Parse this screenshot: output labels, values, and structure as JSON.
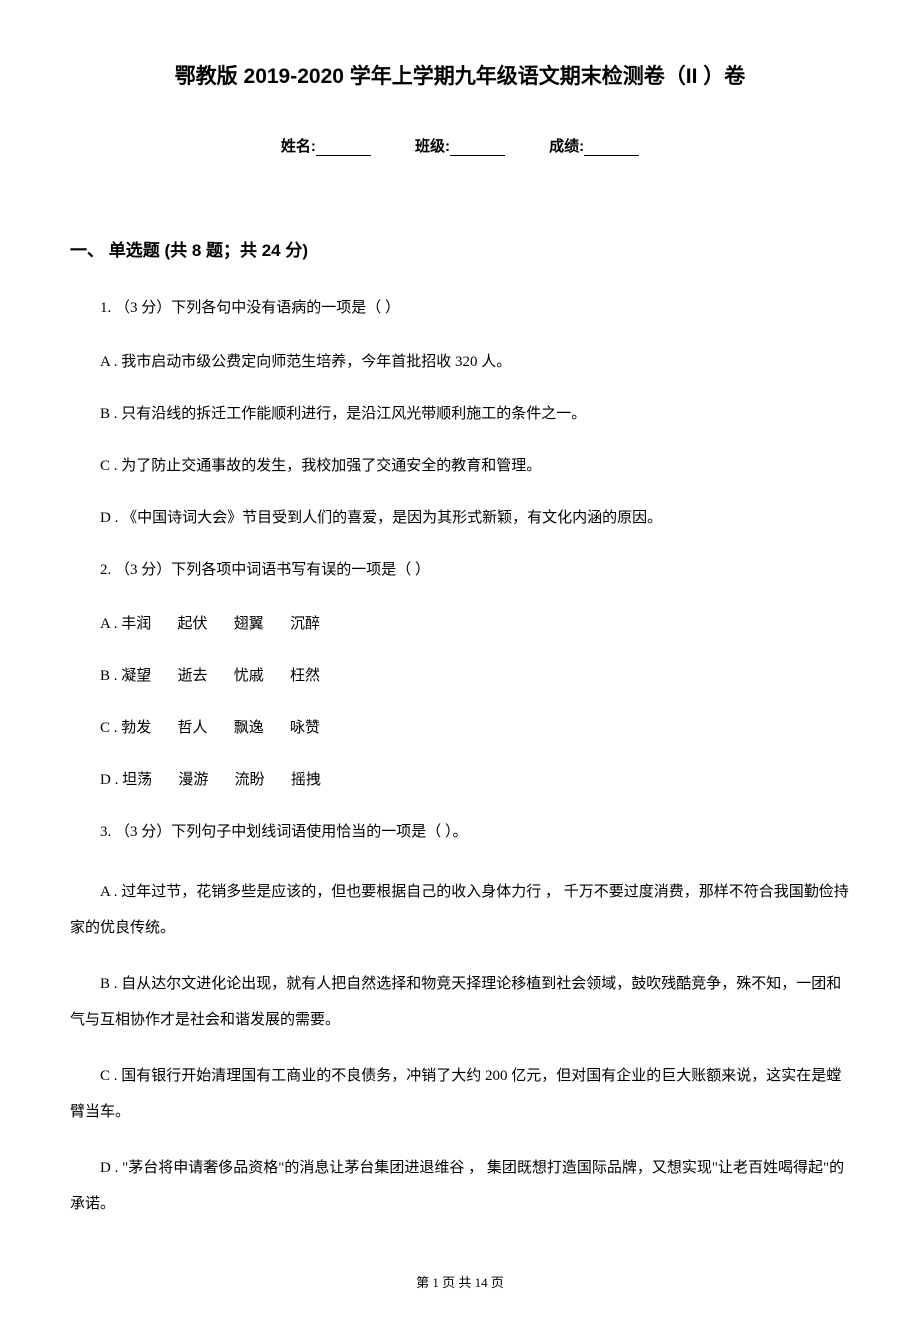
{
  "title": "鄂教版 2019-2020 学年上学期九年级语文期末检测卷（II ）卷",
  "header": {
    "name_label": "姓名:",
    "class_label": "班级:",
    "score_label": "成绩:"
  },
  "section": {
    "heading": "一、 单选题 (共 8 题；共 24 分)"
  },
  "q1": {
    "stem": "1. （3 分）下列各句中没有语病的一项是（    ）",
    "optA": "A . 我市启动市级公费定向师范生培养，今年首批招收 320 人。",
    "optB": "B . 只有沿线的拆迁工作能顺利进行，是沿江风光带顺利施工的条件之一。",
    "optC": "C . 为了防止交通事故的发生，我校加强了交通安全的教育和管理。",
    "optD": "D . 《中国诗词大会》节目受到人们的喜爱，是因为其形式新颖，有文化内涵的原因。"
  },
  "q2": {
    "stem": "2. （3 分）下列各项中词语书写有误的一项是（    ）",
    "optA": "A . 丰润       起伏       翅翼       沉醉",
    "optB": "B . 凝望       逝去       忧戚       枉然",
    "optC": "C . 勃发       哲人       飘逸       咏赞",
    "optD": "D . 坦荡       漫游       流盼       摇拽"
  },
  "q3": {
    "stem": "3. （3 分）下列句子中划线词语使用恰当的一项是（    ）。",
    "optA": "A . 过年过节，花销多些是应该的，但也要根据自己的收入身体力行 ， 千万不要过度消费，那样不符合我国勤俭持家的优良传统。",
    "optB": "B . 自从达尔文进化论出现，就有人把自然选择和物竞天择理论移植到社会领域，鼓吹残酷竞争，殊不知，一团和气与互相协作才是社会和谐发展的需要。",
    "optC": "C . 国有银行开始清理国有工商业的不良债务，冲销了大约 200 亿元，但对国有企业的巨大账额来说，这实在是螳臂当车。",
    "optD": "D . \"茅台将申请奢侈品资格\"的消息让茅台集团进退维谷 ， 集团既想打造国际品牌，又想实现\"让老百姓喝得起\"的承诺。"
  },
  "footer": {
    "text": "第 1 页 共 14 页"
  }
}
